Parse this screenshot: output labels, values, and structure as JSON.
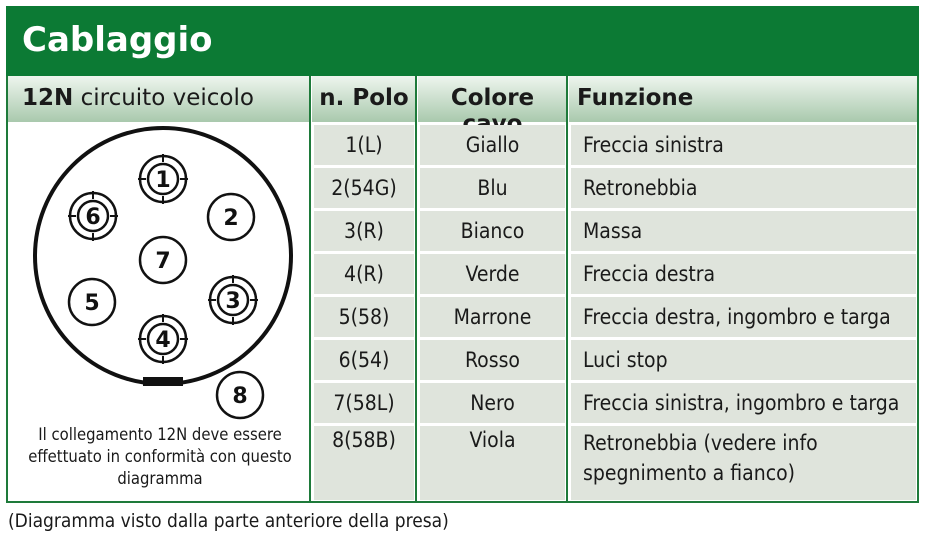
{
  "title": "Cablaggio",
  "left_panel": {
    "header_bold": "12N",
    "header_rest": " circuito veicolo",
    "pins": [
      "1",
      "2",
      "3",
      "4",
      "5",
      "6",
      "7",
      "8"
    ],
    "note": "Il collegamento 12N deve essere effettuato in conformità con questo diagramma"
  },
  "table": {
    "headers": [
      "n. Polo",
      "Colore cavo",
      "Funzione"
    ],
    "rows": [
      {
        "polo": "1(L)",
        "colore": "Giallo",
        "funzione": "Freccia sinistra"
      },
      {
        "polo": "2(54G)",
        "colore": "Blu",
        "funzione": "Retronebbia"
      },
      {
        "polo": "3(R)",
        "colore": "Bianco",
        "funzione": "Massa"
      },
      {
        "polo": "4(R)",
        "colore": "Verde",
        "funzione": "Freccia destra"
      },
      {
        "polo": "5(58)",
        "colore": "Marrone",
        "funzione": "Freccia destra, ingombro e targa"
      },
      {
        "polo": "6(54)",
        "colore": "Rosso",
        "funzione": "Luci stop"
      },
      {
        "polo": "7(58L)",
        "colore": "Nero",
        "funzione": "Freccia sinistra, ingombro e targa"
      },
      {
        "polo": "8(58B)",
        "colore": "Viola",
        "funzione": "Retronebbia (vedere info spegnimento a fianco)"
      }
    ]
  },
  "caption": "(Diagramma visto dalla parte anteriore della presa)",
  "colors": {
    "brand_green": "#0c7a34",
    "row_bg": "#dfe4dc"
  }
}
